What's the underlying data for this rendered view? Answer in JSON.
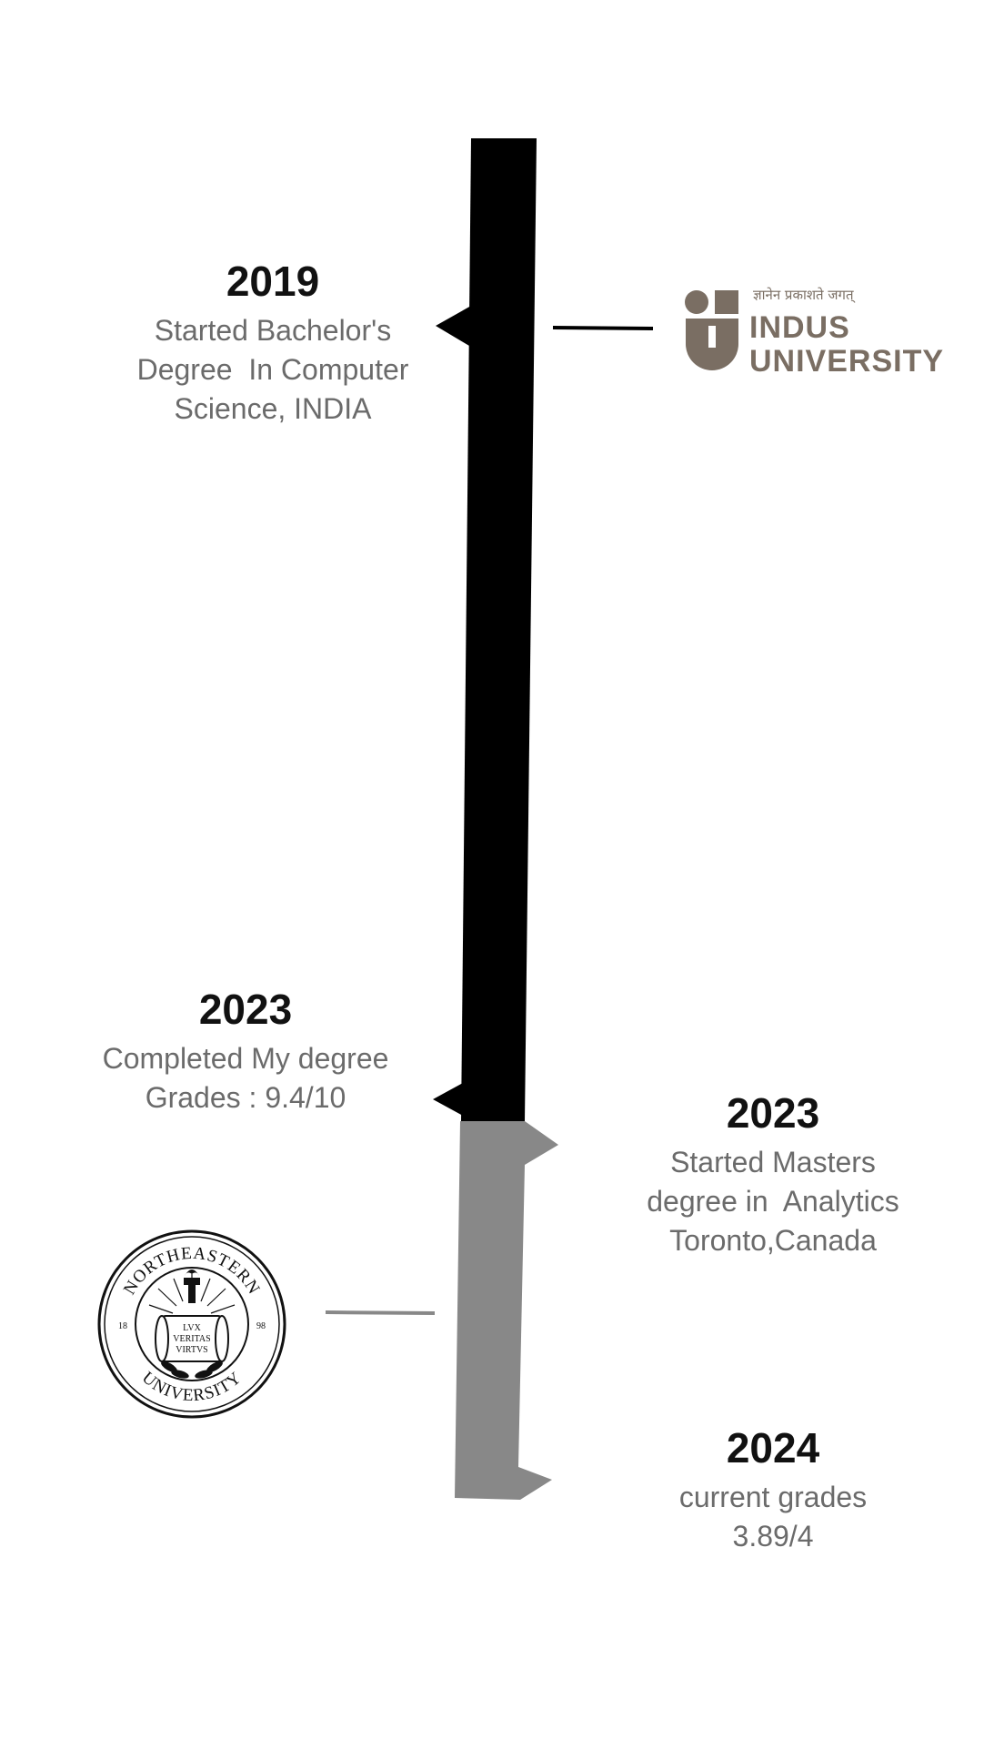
{
  "events": [
    {
      "year": "2019",
      "description": "Started Bachelor's\nDegree  In Computer\nScience, INDIA"
    },
    {
      "year": "2023",
      "description": "Completed My degree\nGrades : 9.4/10"
    },
    {
      "year": "2023",
      "description": "Started Masters\ndegree in  Analytics\nToronto,Canada"
    },
    {
      "year": "2024",
      "description": "current grades\n3.89/4"
    }
  ],
  "indus_logo": {
    "motto": "ज्ञानेन प्रकाशते जगत्",
    "name": "INDUS\nUNIVERSITY",
    "color": "#7a6e63"
  },
  "northeastern_seal": {
    "top_text": "NORTHEASTERN",
    "bottom_text": "UNIVERSITY",
    "left_num": "18",
    "right_num": "98",
    "motto_line1": "LVX",
    "motto_line2": "VERITAS",
    "motto_line3": "VIRTVS"
  },
  "colors": {
    "bachelor_bar": "#000000",
    "masters_bar": "#888888",
    "year_text": "#111111",
    "description_text": "#6b6b6b"
  }
}
